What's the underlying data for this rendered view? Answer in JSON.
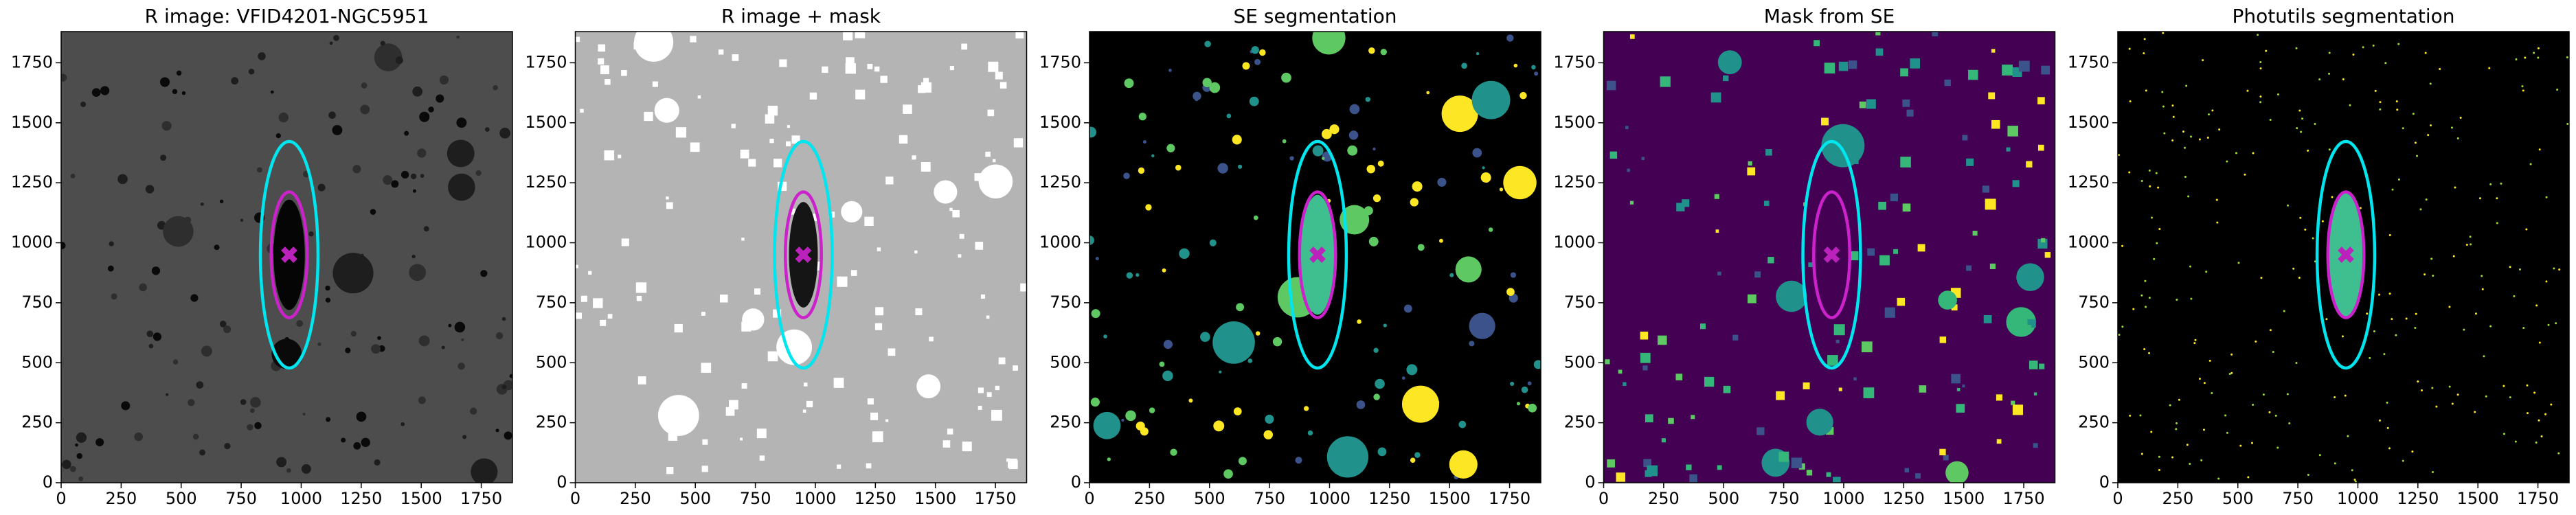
{
  "chart_data": [
    {
      "type": "image",
      "title": "R image: VFID4201-NGC5951",
      "background": "#4d4d4d",
      "spot_colors": [
        "#0a0a0a",
        "#1e1e1e",
        "#2e2e2e"
      ],
      "spot_shape": "circle",
      "xlim": [
        0,
        1880
      ],
      "ylim": [
        0,
        1880
      ],
      "xticks": [
        0,
        250,
        500,
        750,
        1000,
        1250,
        1500,
        1750
      ],
      "yticks": [
        0,
        250,
        500,
        750,
        1000,
        1250,
        1500,
        1750
      ],
      "segment": {
        "center": [
          950,
          950
        ],
        "semi_axes": [
          65,
          230
        ],
        "color": "#050505"
      },
      "ellipses": [
        {
          "center": [
            950,
            950
          ],
          "semi_axes": [
            120,
            472
          ],
          "color": "#00e5ee"
        },
        {
          "center": [
            950,
            950
          ],
          "semi_axes": [
            75,
            262
          ],
          "color": "#cc22cc"
        }
      ],
      "marker": {
        "x": 950,
        "y": 950,
        "color": "#bb22bb"
      }
    },
    {
      "type": "image",
      "title": "R image + mask",
      "background": "#b4b4b4",
      "spot_colors": [
        "#ffffff"
      ],
      "spot_shape": "square",
      "xlim": [
        0,
        1880
      ],
      "ylim": [
        0,
        1880
      ],
      "xticks": [
        0,
        250,
        500,
        750,
        1000,
        1250,
        1500,
        1750
      ],
      "yticks": [
        0,
        250,
        500,
        750,
        1000,
        1250,
        1500,
        1750
      ],
      "segment": {
        "center": [
          950,
          950
        ],
        "semi_axes": [
          60,
          220
        ],
        "color": "#151515"
      },
      "ellipses": [
        {
          "center": [
            950,
            950
          ],
          "semi_axes": [
            120,
            472
          ],
          "color": "#00e5ee"
        },
        {
          "center": [
            950,
            950
          ],
          "semi_axes": [
            75,
            262
          ],
          "color": "#cc22cc"
        }
      ],
      "marker": {
        "x": 950,
        "y": 950,
        "color": "#bb22bb"
      }
    },
    {
      "type": "image",
      "title": "SE segmentation",
      "background": "#000000",
      "spot_colors": [
        "#fde725",
        "#5ec962",
        "#21918c",
        "#3b528b"
      ],
      "spot_shape": "circle",
      "xlim": [
        0,
        1880
      ],
      "ylim": [
        0,
        1880
      ],
      "xticks": [
        0,
        250,
        500,
        750,
        1000,
        1250,
        1500,
        1750
      ],
      "yticks": [
        0,
        250,
        500,
        750,
        1000,
        1250,
        1500,
        1750
      ],
      "segment": {
        "center": [
          950,
          950
        ],
        "semi_axes": [
          70,
          250
        ],
        "color": "#3fbf8f"
      },
      "ellipses": [
        {
          "center": [
            950,
            950
          ],
          "semi_axes": [
            120,
            472
          ],
          "color": "#00e5ee"
        },
        {
          "center": [
            950,
            950
          ],
          "semi_axes": [
            75,
            262
          ],
          "color": "#cc22cc"
        }
      ],
      "marker": {
        "x": 950,
        "y": 950,
        "color": "#bb22bb"
      }
    },
    {
      "type": "image",
      "title": "Mask from SE",
      "background": "#440154",
      "spot_colors": [
        "#fde725",
        "#5ec962",
        "#21918c",
        "#3b528b",
        "#35b779"
      ],
      "spot_shape": "square",
      "xlim": [
        0,
        1880
      ],
      "ylim": [
        0,
        1880
      ],
      "xticks": [
        0,
        250,
        500,
        750,
        1000,
        1250,
        1500,
        1750
      ],
      "yticks": [
        0,
        250,
        500,
        750,
        1000,
        1250,
        1500,
        1750
      ],
      "segment": {
        "center": [
          950,
          950
        ],
        "semi_axes": [
          70,
          250
        ],
        "color": "#440154"
      },
      "ellipses": [
        {
          "center": [
            950,
            950
          ],
          "semi_axes": [
            120,
            472
          ],
          "color": "#00e5ee"
        },
        {
          "center": [
            950,
            950
          ],
          "semi_axes": [
            75,
            262
          ],
          "color": "#cc22cc"
        }
      ],
      "marker": {
        "x": 950,
        "y": 950,
        "color": "#bb22bb"
      }
    },
    {
      "type": "image",
      "title": "Photutils segmentation",
      "background": "#000000",
      "spot_colors": [
        "#fde725",
        "#a0da39"
      ],
      "spot_shape": "dot",
      "xlim": [
        0,
        1880
      ],
      "ylim": [
        0,
        1880
      ],
      "xticks": [
        0,
        250,
        500,
        750,
        1000,
        1250,
        1500,
        1750
      ],
      "yticks": [
        0,
        250,
        500,
        750,
        1000,
        1250,
        1500,
        1750
      ],
      "segment": {
        "center": [
          950,
          950
        ],
        "semi_axes": [
          70,
          260
        ],
        "color": "#3fbf8f"
      },
      "ellipses": [
        {
          "center": [
            950,
            950
          ],
          "semi_axes": [
            120,
            472
          ],
          "color": "#00e5ee"
        },
        {
          "center": [
            950,
            950
          ],
          "semi_axes": [
            75,
            262
          ],
          "color": "#cc22cc"
        }
      ],
      "marker": {
        "x": 950,
        "y": 950,
        "color": "#bb22bb"
      }
    }
  ]
}
